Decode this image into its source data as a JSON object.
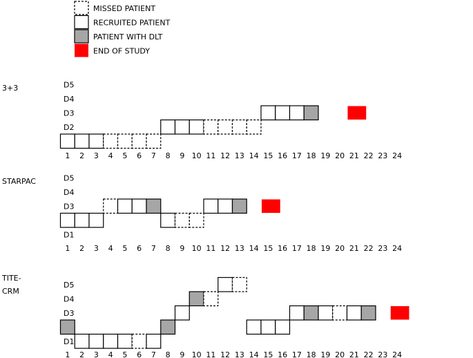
{
  "legend": [
    {
      "key": "missed",
      "label": "MISSED PATIENT"
    },
    {
      "key": "recruited",
      "label": "RECRUITED PATIENT"
    },
    {
      "key": "dlt",
      "label": "PATIENT WITH DLT"
    },
    {
      "key": "end",
      "label": "END OF STUDY"
    }
  ],
  "colors": {
    "dlt": "#a6a6a6",
    "end": "#ff0000",
    "stroke": "#000000"
  },
  "dose_levels": [
    "D5",
    "D4",
    "D3",
    "D2",
    "D1"
  ],
  "patient_numbers": [
    "1",
    "2",
    "3",
    "4",
    "5",
    "6",
    "7",
    "8",
    "9",
    "10",
    "11",
    "12",
    "13",
    "14",
    "15",
    "16",
    "17",
    "18",
    "19",
    "20",
    "21",
    "22",
    "23",
    "24"
  ],
  "panels": [
    {
      "name_lines": [
        "3+3"
      ],
      "patients": [
        {
          "n": 1,
          "dose": 1,
          "type": "recruited"
        },
        {
          "n": 2,
          "dose": 1,
          "type": "recruited"
        },
        {
          "n": 3,
          "dose": 1,
          "type": "recruited"
        },
        {
          "n": 4,
          "dose": 1,
          "type": "missed"
        },
        {
          "n": 5,
          "dose": 1,
          "type": "missed"
        },
        {
          "n": 6,
          "dose": 1,
          "type": "missed"
        },
        {
          "n": 7,
          "dose": 1,
          "type": "missed"
        },
        {
          "n": 8,
          "dose": 2,
          "type": "recruited"
        },
        {
          "n": 9,
          "dose": 2,
          "type": "recruited"
        },
        {
          "n": 10,
          "dose": 2,
          "type": "recruited"
        },
        {
          "n": 11,
          "dose": 2,
          "type": "missed"
        },
        {
          "n": 12,
          "dose": 2,
          "type": "missed"
        },
        {
          "n": 13,
          "dose": 2,
          "type": "missed"
        },
        {
          "n": 14,
          "dose": 2,
          "type": "missed"
        },
        {
          "n": 15,
          "dose": 3,
          "type": "recruited"
        },
        {
          "n": 16,
          "dose": 3,
          "type": "recruited"
        },
        {
          "n": 17,
          "dose": 3,
          "type": "recruited"
        },
        {
          "n": 18,
          "dose": 3,
          "type": "dlt"
        }
      ],
      "end_of_study": {
        "n": 21,
        "dose": 3
      }
    },
    {
      "name_lines": [
        "STARPAC"
      ],
      "patients": [
        {
          "n": 1,
          "dose": 2,
          "type": "recruited"
        },
        {
          "n": 2,
          "dose": 2,
          "type": "recruited"
        },
        {
          "n": 3,
          "dose": 2,
          "type": "recruited"
        },
        {
          "n": 4,
          "dose": 3,
          "type": "missed"
        },
        {
          "n": 5,
          "dose": 3,
          "type": "recruited"
        },
        {
          "n": 6,
          "dose": 3,
          "type": "recruited"
        },
        {
          "n": 7,
          "dose": 3,
          "type": "dlt"
        },
        {
          "n": 8,
          "dose": 2,
          "type": "recruited"
        },
        {
          "n": 9,
          "dose": 2,
          "type": "missed"
        },
        {
          "n": 10,
          "dose": 2,
          "type": "missed"
        },
        {
          "n": 11,
          "dose": 3,
          "type": "recruited"
        },
        {
          "n": 12,
          "dose": 3,
          "type": "recruited"
        },
        {
          "n": 13,
          "dose": 3,
          "type": "dlt"
        }
      ],
      "end_of_study": {
        "n": 15,
        "dose": 3
      }
    },
    {
      "name_lines": [
        "TITE-",
        "CRM"
      ],
      "patients": [
        {
          "n": 1,
          "dose": 2,
          "type": "dlt"
        },
        {
          "n": 2,
          "dose": 1,
          "type": "recruited"
        },
        {
          "n": 3,
          "dose": 1,
          "type": "recruited"
        },
        {
          "n": 4,
          "dose": 1,
          "type": "recruited"
        },
        {
          "n": 5,
          "dose": 1,
          "type": "recruited"
        },
        {
          "n": 6,
          "dose": 1,
          "type": "missed"
        },
        {
          "n": 7,
          "dose": 1,
          "type": "recruited"
        },
        {
          "n": 8,
          "dose": 2,
          "type": "dlt"
        },
        {
          "n": 9,
          "dose": 3,
          "type": "recruited"
        },
        {
          "n": 10,
          "dose": 4,
          "type": "dlt"
        },
        {
          "n": 11,
          "dose": 4,
          "type": "missed"
        },
        {
          "n": 12,
          "dose": 5,
          "type": "recruited"
        },
        {
          "n": 13,
          "dose": 5,
          "type": "missed"
        },
        {
          "n": 14,
          "dose": 2,
          "type": "recruited"
        },
        {
          "n": 15,
          "dose": 2,
          "type": "recruited"
        },
        {
          "n": 16,
          "dose": 2,
          "type": "recruited"
        },
        {
          "n": 17,
          "dose": 3,
          "type": "recruited"
        },
        {
          "n": 18,
          "dose": 3,
          "type": "dlt"
        },
        {
          "n": 19,
          "dose": 3,
          "type": "recruited"
        },
        {
          "n": 20,
          "dose": 3,
          "type": "missed"
        },
        {
          "n": 21,
          "dose": 3,
          "type": "recruited"
        },
        {
          "n": 22,
          "dose": 3,
          "type": "dlt"
        }
      ],
      "end_of_study": {
        "n": 24,
        "dose": 3
      }
    }
  ]
}
